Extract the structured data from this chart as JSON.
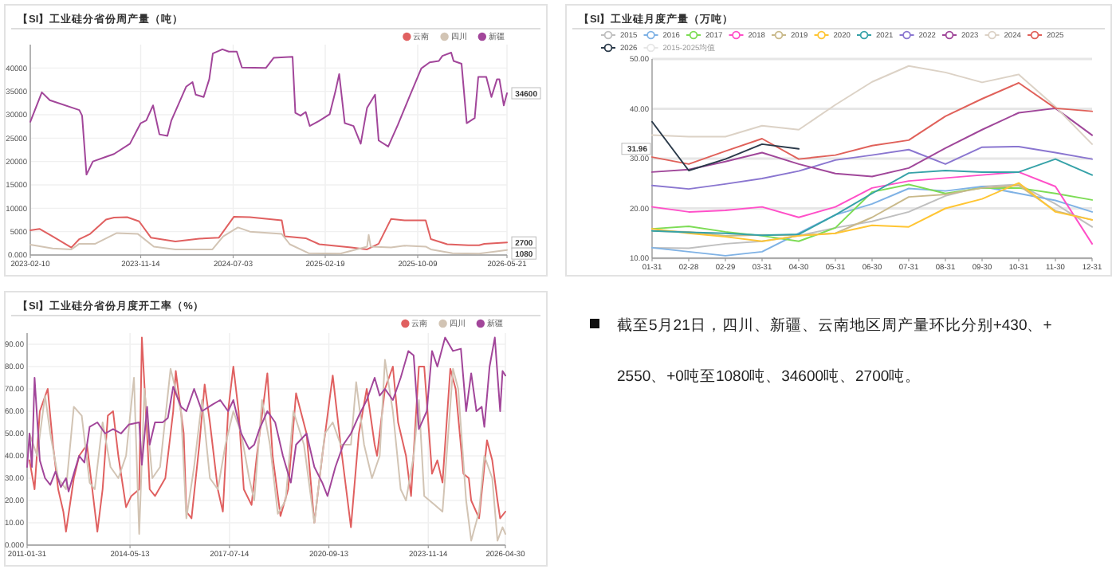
{
  "chart_data": [
    {
      "type": "line",
      "title": "【SI】工业硅分省份周产量（吨）",
      "xlim": [
        "2023-02-10",
        "2026-05-21"
      ],
      "xticks": [
        "2023-02-10",
        "2023-11-14",
        "2024-07-03",
        "2025-02-19",
        "2025-10-09",
        "2026-05-21"
      ],
      "ylim": [
        0,
        45000
      ],
      "yticks": [
        {
          "value": 0,
          "label": "0.000"
        },
        5000,
        10000,
        15000,
        20000,
        25000,
        30000,
        35000,
        40000
      ],
      "grid": true,
      "legend": "top right",
      "annotations": [
        {
          "text": "34600",
          "x": "2026-05-21",
          "y": 34600
        },
        {
          "text": "2700",
          "x": "2026-05-21",
          "y": 2700
        },
        {
          "text": "1080",
          "x": "2026-05-21",
          "y": 1080
        }
      ],
      "series": [
        {
          "name": "云南",
          "color": "#e06060",
          "x": [
            "2023-02-10",
            "2023-03-05",
            "2023-04-07",
            "2023-05-24",
            "2023-06-13",
            "2023-07-10",
            "2023-08-19",
            "2023-09-08",
            "2023-10-11",
            "2023-11-10",
            "2023-12-10",
            "2024-02-09",
            "2024-04-09",
            "2024-05-28",
            "2024-07-05",
            "2024-08-14",
            "2024-11-02",
            "2024-11-09",
            "2025-01-01",
            "2025-02-04",
            "2025-04-25",
            "2025-06-04",
            "2025-07-03",
            "2025-08-03",
            "2025-09-06",
            "2025-10-29",
            "2025-11-11",
            "2025-12-22",
            "2026-02-13",
            "2026-03-12",
            "2026-03-25",
            "2026-05-21"
          ],
          "values": [
            5300,
            5600,
            4000,
            1600,
            3400,
            4500,
            7600,
            8000,
            8100,
            7200,
            3700,
            2900,
            3500,
            3700,
            8200,
            8100,
            7400,
            4000,
            3600,
            2300,
            1600,
            1200,
            2400,
            7700,
            7400,
            7400,
            3400,
            2300,
            2100,
            2100,
            2400,
            2700
          ]
        },
        {
          "name": "四川",
          "color": "#d2c4b4",
          "x": [
            "2023-02-10",
            "2023-04-07",
            "2023-05-24",
            "2023-06-13",
            "2023-07-23",
            "2023-09-15",
            "2023-11-07",
            "2023-12-17",
            "2024-02-09",
            "2024-05-12",
            "2024-06-08",
            "2024-07-15",
            "2024-08-14",
            "2024-11-02",
            "2024-11-22",
            "2025-01-08",
            "2025-03-29",
            "2025-06-04",
            "2025-06-08",
            "2025-06-13",
            "2025-08-03",
            "2025-09-06",
            "2025-10-29",
            "2025-11-11",
            "2026-01-04",
            "2026-03-12",
            "2026-05-21"
          ],
          "values": [
            2200,
            1400,
            1200,
            2400,
            2400,
            4700,
            4500,
            1800,
            1200,
            1200,
            4000,
            5900,
            5000,
            4500,
            2300,
            400,
            300,
            1800,
            4300,
            1800,
            1600,
            2000,
            1800,
            1200,
            400,
            300,
            1080
          ]
        },
        {
          "name": "新疆",
          "color": "#a2469a",
          "x": [
            "2023-02-10",
            "2023-03-11",
            "2023-03-31",
            "2023-06-13",
            "2023-06-20",
            "2023-07-01",
            "2023-07-17",
            "2023-08-19",
            "2023-09-08",
            "2023-10-18",
            "2023-11-14",
            "2023-11-28",
            "2023-12-15",
            "2023-12-31",
            "2024-01-20",
            "2024-01-30",
            "2024-03-07",
            "2024-03-23",
            "2024-03-31",
            "2024-04-20",
            "2024-05-04",
            "2024-05-13",
            "2024-06-06",
            "2024-06-22",
            "2024-07-12",
            "2024-07-25",
            "2024-09-23",
            "2024-10-13",
            "2024-11-29",
            "2024-12-06",
            "2024-12-19",
            "2025-01-01",
            "2025-01-11",
            "2025-02-04",
            "2025-03-02",
            "2025-03-16",
            "2025-03-26",
            "2025-04-09",
            "2025-05-01",
            "2025-05-19",
            "2025-06-04",
            "2025-06-24",
            "2025-07-03",
            "2025-07-27",
            "2025-08-20",
            "2025-09-18",
            "2025-10-18",
            "2025-11-08",
            "2025-12-01",
            "2025-12-10",
            "2026-01-01",
            "2026-01-07",
            "2026-01-27",
            "2026-02-09",
            "2026-03-01",
            "2026-03-10",
            "2026-03-30",
            "2026-04-12",
            "2026-04-26",
            "2026-05-02",
            "2026-05-13",
            "2026-05-21"
          ],
          "values": [
            28500,
            34800,
            33100,
            31000,
            29800,
            17200,
            20000,
            21000,
            21600,
            23800,
            28200,
            28800,
            32000,
            25800,
            25500,
            28800,
            36000,
            37000,
            34300,
            33800,
            37600,
            43100,
            44000,
            43500,
            43500,
            40100,
            40000,
            42200,
            42400,
            30400,
            29800,
            30600,
            27600,
            28700,
            30100,
            34800,
            38700,
            28200,
            27600,
            23800,
            31500,
            34300,
            24500,
            23200,
            27800,
            33800,
            39900,
            41200,
            41500,
            42600,
            43300,
            41500,
            40900,
            28200,
            29300,
            38100,
            38100,
            33800,
            37600,
            37600,
            32000,
            34600
          ]
        }
      ]
    },
    {
      "type": "line",
      "title": "【SI】工业硅月度产量（万吨）",
      "categories": [
        "01-31",
        "02-28",
        "02-29",
        "03-31",
        "04-30",
        "05-31",
        "06-30",
        "07-31",
        "08-31",
        "09-30",
        "10-31",
        "11-30",
        "12-31"
      ],
      "ylim": [
        10,
        50
      ],
      "yticks": [
        {
          "value": 10,
          "label": "10.00"
        },
        {
          "value": 20,
          "label": "20.00"
        },
        {
          "value": 30,
          "label": "30.00"
        },
        {
          "value": 40,
          "label": "40.00"
        },
        {
          "value": 50,
          "label": "50.00"
        }
      ],
      "grid": "y",
      "legend": "top",
      "annotations": [
        {
          "text": "31.96",
          "y": 31.96
        }
      ],
      "series": [
        {
          "name": "2015",
          "color": "#bfbfbf",
          "values": [
            12.1,
            12.0,
            12.9,
            13.4,
            14.5,
            16.1,
            17.4,
            19.3,
            22.5,
            24.4,
            24.8,
            20.9,
            16.3
          ]
        },
        {
          "name": "2016",
          "color": "#7fb2e5",
          "values": [
            12.1,
            11.3,
            10.5,
            11.3,
            15.0,
            18.7,
            20.9,
            24.0,
            23.5,
            24.4,
            23.0,
            21.6,
            19.3
          ]
        },
        {
          "name": "2017",
          "color": "#7ddc55",
          "values": [
            15.9,
            16.4,
            15.3,
            14.5,
            13.4,
            16.1,
            23.3,
            24.8,
            23.0,
            24.1,
            24.1,
            23.0,
            21.7
          ]
        },
        {
          "name": "2018",
          "color": "#ff4fc8",
          "values": [
            20.3,
            19.3,
            19.6,
            20.3,
            18.2,
            20.3,
            24.1,
            25.5,
            26.1,
            26.7,
            27.3,
            24.4,
            12.9
          ]
        },
        {
          "name": "2019",
          "color": "#c9b98a",
          "values": [
            15.5,
            15.3,
            14.5,
            14.7,
            14.6,
            15.0,
            18.2,
            22.3,
            22.8,
            24.1,
            24.6,
            19.5,
            17.7
          ]
        },
        {
          "name": "2020",
          "color": "#ffc533",
          "values": [
            15.9,
            15.0,
            14.3,
            13.4,
            14.5,
            15.0,
            16.6,
            16.3,
            20.0,
            21.9,
            25.1,
            19.3,
            17.7
          ]
        },
        {
          "name": "2021",
          "color": "#36a2a8",
          "values": [
            15.5,
            15.2,
            15.0,
            14.6,
            14.8,
            18.7,
            23.0,
            27.1,
            27.6,
            27.3,
            27.3,
            29.9,
            26.7
          ]
        },
        {
          "name": "2022",
          "color": "#8a76d0",
          "values": [
            24.6,
            23.9,
            24.9,
            26.0,
            27.5,
            29.7,
            30.7,
            31.8,
            28.9,
            32.3,
            32.4,
            31.2,
            29.9
          ]
        },
        {
          "name": "2023",
          "color": "#a0479a",
          "values": [
            27.3,
            27.8,
            29.4,
            31.2,
            28.9,
            27.0,
            26.4,
            28.1,
            32.1,
            35.8,
            39.2,
            40.1,
            34.7
          ]
        },
        {
          "name": "2024",
          "color": "#dcd2c6",
          "values": [
            34.7,
            34.4,
            34.4,
            36.6,
            35.8,
            40.8,
            45.4,
            48.6,
            47.3,
            45.3,
            46.9,
            40.4,
            32.9
          ]
        },
        {
          "name": "2025",
          "color": "#e0615a",
          "values": [
            30.3,
            28.9,
            31.5,
            34.0,
            29.9,
            30.7,
            32.6,
            33.7,
            38.5,
            42.0,
            45.2,
            40.1,
            39.5
          ]
        },
        {
          "name": "2026",
          "color": "#2b3a4a",
          "values": [
            37.4,
            27.6,
            29.9,
            32.9,
            31.96,
            null,
            null,
            null,
            null,
            null,
            null,
            null,
            null
          ]
        },
        {
          "name": "2015-2025均值",
          "color": "#e6e6e6",
          "values": [
            null,
            null,
            null,
            null,
            null,
            null,
            null,
            null,
            null,
            null,
            null,
            null,
            null
          ]
        }
      ]
    },
    {
      "type": "line",
      "title": "【SI】工业硅分省份月度开工率（%）",
      "xlim": [
        "2011-01-31",
        "2026-04-30"
      ],
      "xticks": [
        "2011-01-31",
        "2014-05-13",
        "2017-07-14",
        "2020-09-13",
        "2023-11-14",
        "2026-04-30"
      ],
      "ylim": [
        0,
        95
      ],
      "yticks": [
        {
          "value": 0,
          "label": "0.000"
        },
        {
          "value": 10,
          "label": "10.00"
        },
        {
          "value": 20,
          "label": "20.00"
        },
        {
          "value": 30,
          "label": "30.00"
        },
        {
          "value": 40,
          "label": "40.00"
        },
        {
          "value": 50,
          "label": "50.00"
        },
        {
          "value": 60,
          "label": "60.00"
        },
        {
          "value": 70,
          "label": "70.00"
        },
        {
          "value": 80,
          "label": "80.00"
        },
        {
          "value": 90,
          "label": "90.00"
        }
      ],
      "grid": true,
      "legend": "top right",
      "series": [
        {
          "name": "云南",
          "color": "#e06060",
          "x": [
            "2011-02-28",
            "2011-04-28",
            "2011-06-28",
            "2011-09-28",
            "2011-11-28",
            "2012-01-28",
            "2012-03-28",
            "2012-04-28",
            "2012-07-28",
            "2012-09-28",
            "2012-12-28",
            "2013-02-28",
            "2013-04-28",
            "2013-06-28",
            "2013-08-28",
            "2013-10-28",
            "2013-12-28",
            "2014-03-28",
            "2014-05-28",
            "2014-08-28",
            "2014-09-28",
            "2014-11-28",
            "2014-12-28",
            "2015-02-28",
            "2015-06-28",
            "2015-09-28",
            "2015-10-28",
            "2016-01-28",
            "2016-02-28",
            "2016-04-28",
            "2016-07-28",
            "2016-09-28",
            "2016-11-28",
            "2017-02-28",
            "2017-04-28",
            "2017-06-28",
            "2017-08-28",
            "2017-10-28",
            "2017-12-28",
            "2018-03-28",
            "2018-05-28",
            "2018-09-28",
            "2018-11-28",
            "2019-02-28",
            "2019-05-28",
            "2019-08-28",
            "2019-12-28",
            "2020-03-28",
            "2020-06-28",
            "2020-10-28",
            "2021-01-28",
            "2021-05-28",
            "2021-08-28",
            "2021-11-28",
            "2022-02-28",
            "2022-03-28",
            "2022-06-28",
            "2022-09-28",
            "2022-11-28",
            "2023-02-28",
            "2023-04-28",
            "2023-07-28",
            "2023-09-28",
            "2023-12-28",
            "2024-02-28",
            "2024-04-28",
            "2024-07-28",
            "2024-09-28",
            "2024-12-28",
            "2025-02-28",
            "2025-03-28",
            "2025-06-28",
            "2025-09-28",
            "2025-11-28",
            "2026-01-28",
            "2026-02-28",
            "2026-04-30"
          ],
          "values": [
            38,
            25,
            60,
            70,
            45,
            25,
            15,
            6,
            30,
            40,
            45,
            25,
            6,
            25,
            58,
            60,
            40,
            17,
            22,
            25,
            93,
            50,
            25,
            22,
            30,
            60,
            78,
            50,
            15,
            12,
            45,
            72,
            55,
            25,
            15,
            60,
            80,
            60,
            25,
            18,
            40,
            77,
            40,
            13,
            25,
            68,
            50,
            10,
            40,
            76,
            45,
            8,
            50,
            70,
            45,
            40,
            70,
            80,
            55,
            40,
            22,
            80,
            80,
            32,
            38,
            28,
            79,
            70,
            32,
            30,
            20,
            12,
            47,
            38,
            20,
            12,
            15
          ]
        },
        {
          "name": "四川",
          "color": "#d2c4b4",
          "x": [
            "2011-02-28",
            "2011-05-28",
            "2011-08-28",
            "2011-10-28",
            "2012-01-28",
            "2012-04-28",
            "2012-07-28",
            "2012-10-28",
            "2013-01-28",
            "2013-03-28",
            "2013-06-28",
            "2013-09-28",
            "2013-12-28",
            "2014-03-28",
            "2014-06-28",
            "2014-08-28",
            "2014-10-28",
            "2015-01-28",
            "2015-04-28",
            "2015-08-28",
            "2015-12-28",
            "2016-02-28",
            "2016-05-28",
            "2016-08-28",
            "2016-11-28",
            "2017-02-28",
            "2017-05-28",
            "2017-08-28",
            "2017-11-28",
            "2018-02-28",
            "2018-04-28",
            "2018-07-28",
            "2018-10-28",
            "2019-01-28",
            "2019-04-28",
            "2019-07-28",
            "2019-11-28",
            "2020-03-28",
            "2020-07-28",
            "2020-10-28",
            "2021-01-28",
            "2021-05-28",
            "2021-07-28",
            "2021-10-28",
            "2022-01-28",
            "2022-04-28",
            "2022-06-28",
            "2022-09-28",
            "2022-12-28",
            "2023-02-28",
            "2023-05-28",
            "2023-07-28",
            "2023-09-28",
            "2024-01-28",
            "2024-04-28",
            "2024-08-28",
            "2024-10-28",
            "2025-01-28",
            "2025-03-28",
            "2025-06-28",
            "2025-08-28",
            "2025-11-28",
            "2026-01-28",
            "2026-03-28",
            "2026-04-30"
          ],
          "values": [
            50,
            40,
            67,
            50,
            30,
            25,
            62,
            58,
            28,
            25,
            55,
            35,
            30,
            40,
            75,
            5,
            70,
            30,
            35,
            79,
            60,
            12,
            35,
            65,
            30,
            25,
            45,
            60,
            50,
            30,
            20,
            65,
            45,
            14,
            20,
            60,
            45,
            10,
            50,
            55,
            45,
            45,
            73,
            45,
            30,
            40,
            83,
            60,
            25,
            20,
            40,
            65,
            22,
            18,
            15,
            79,
            70,
            20,
            2,
            15,
            40,
            30,
            2,
            8,
            5
          ]
        },
        {
          "name": "新疆",
          "color": "#a2469a",
          "x": [
            "2011-01-31",
            "2011-02-28",
            "2011-03-28",
            "2011-04-28",
            "2011-06-28",
            "2011-08-28",
            "2011-10-28",
            "2011-12-28",
            "2012-02-28",
            "2012-04-28",
            "2012-05-28",
            "2012-07-28",
            "2012-09-28",
            "2012-11-28",
            "2013-01-28",
            "2013-04-28",
            "2013-07-28",
            "2013-10-28",
            "2014-01-28",
            "2014-04-28",
            "2014-08-28",
            "2014-09-28",
            "2014-11-28",
            "2014-12-28",
            "2015-02-28",
            "2015-05-28",
            "2015-07-28",
            "2015-09-28",
            "2015-12-28",
            "2016-02-28",
            "2016-05-28",
            "2016-08-28",
            "2016-12-28",
            "2017-03-28",
            "2017-06-28",
            "2017-08-28",
            "2017-11-28",
            "2018-02-28",
            "2018-04-28",
            "2018-06-28",
            "2018-09-28",
            "2018-12-28",
            "2019-03-28",
            "2019-06-28",
            "2019-08-28",
            "2019-12-28",
            "2020-03-28",
            "2020-06-28",
            "2020-08-28",
            "2020-11-28",
            "2021-02-28",
            "2021-05-28",
            "2021-08-28",
            "2021-11-28",
            "2022-02-28",
            "2022-04-28",
            "2022-06-28",
            "2022-09-28",
            "2022-12-28",
            "2023-03-28",
            "2023-05-28",
            "2023-07-28",
            "2023-10-28",
            "2023-12-28",
            "2024-02-28",
            "2024-05-28",
            "2024-08-28",
            "2024-11-28",
            "2025-01-28",
            "2025-03-28",
            "2025-05-28",
            "2025-07-28",
            "2025-08-28",
            "2025-10-28",
            "2025-12-28",
            "2026-02-28",
            "2026-03-28",
            "2026-04-30"
          ],
          "values": [
            35,
            50,
            35,
            75,
            38,
            30,
            27,
            33,
            26,
            30,
            24,
            32,
            40,
            37,
            53,
            55,
            50,
            52,
            50,
            54,
            55,
            36,
            62,
            45,
            55,
            55,
            57,
            71,
            62,
            60,
            70,
            60,
            63,
            65,
            60,
            65,
            50,
            43,
            45,
            52,
            60,
            55,
            40,
            28,
            45,
            50,
            35,
            28,
            22,
            35,
            45,
            50,
            58,
            65,
            75,
            67,
            70,
            65,
            75,
            87,
            85,
            52,
            60,
            87,
            80,
            93,
            87,
            88,
            60,
            77,
            60,
            62,
            53,
            80,
            93,
            60,
            78,
            76
          ]
        }
      ]
    },
    {
      "type": "other",
      "annotations": [
        "截至5月21日，四川、新疆、云南地区周产量环比分别+430、+2550、+0吨至1080吨、34600吨、2700吨。"
      ]
    }
  ]
}
